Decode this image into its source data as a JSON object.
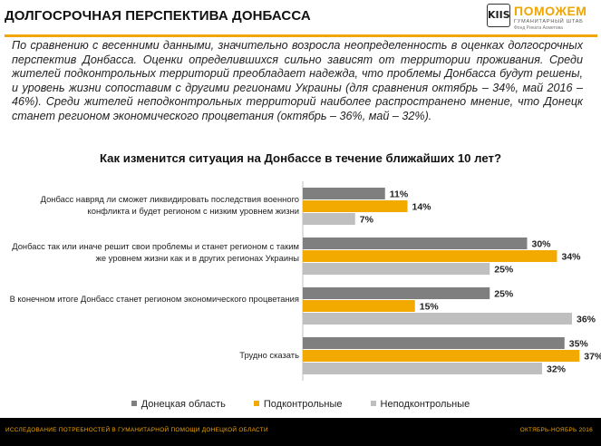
{
  "header": {
    "title": "ДОЛГОСРОЧНАЯ ПЕРСПЕКТИВА ДОНБАССА"
  },
  "logo": {
    "mark": "KIIS",
    "name": "ПОМОЖЕМ",
    "subtitle": "ГУМАНИТАРНЫЙ ШТАБ",
    "subtitle2": "Фонд Рината Ахметова"
  },
  "intro": "По сравнению с весенними данными, значительно возросла неопределенность в оценках долгосрочных перспектив Донбасса. Оценки определившихся сильно зависят от территории проживания. Среди жителей подконтрольных территорий преобладает надежда, что проблемы Донбасса будут решены, и уровень жизни сопоставим с другими регионами Украины (для сравнения октябрь – 34%, май 2016 – 46%). Среди жителей неподконтрольных территорий наиболее распространено мнение, что Донецк станет регионом экономического процветания (октябрь – 36%, май – 32%).",
  "chart_data": {
    "type": "bar",
    "orientation": "horizontal",
    "title": "Как изменится ситуация на Донбассе в течение ближайших 10 лет?",
    "categories": [
      "Донбасс навряд ли сможет ликвидировать последствия военного конфликта и будет регионом с низким уровнем жизни",
      "Донбасс так или иначе решит свои проблемы и станет регионом с таким же уровнем жизни как и в других регионах Украины",
      "В конечном итоге Донбасс станет регионом экономического процветания",
      "Трудно сказать"
    ],
    "series": [
      {
        "name": "Донецкая область",
        "color": "#7f7f7f",
        "values": [
          11,
          30,
          25,
          35
        ]
      },
      {
        "name": "Подконтрольные",
        "color": "#f2a900",
        "values": [
          14,
          34,
          15,
          37
        ]
      },
      {
        "name": "Неподконтрольные",
        "color": "#bfbfbf",
        "values": [
          7,
          25,
          36,
          32
        ]
      }
    ],
    "value_suffix": "%",
    "xlim": [
      0,
      40
    ],
    "grid": false,
    "legend_position": "bottom"
  },
  "footer": {
    "left": "ИССЛЕДОВАНИЕ  ПОТРЕБНОСТЕЙ  В ГУМАНИТАРНОЙ  ПОМОЩИ  ДОНЕЦКОЙ  ОБЛАСТИ",
    "right": "ОКТЯБРЬ-НОЯБРЬ  2016"
  }
}
